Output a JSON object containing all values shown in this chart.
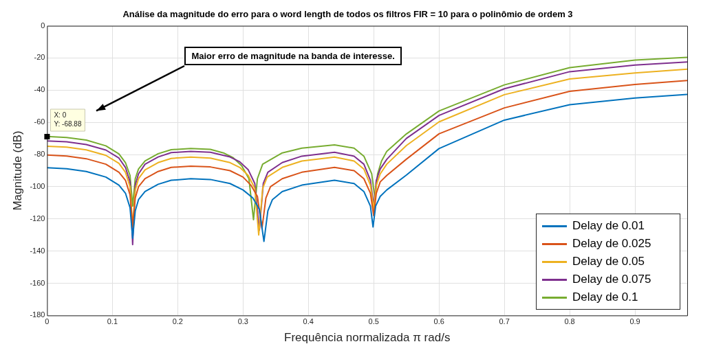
{
  "chart_data": {
    "type": "line",
    "title": "Análise da magnitude do erro para o word length de todos os filtros FIR = 10 para o polinômio de ordem 3",
    "xlabel": "Frequência normalizada π rad/s",
    "ylabel": "Magnitude (dB)",
    "xlim": [
      0,
      0.98
    ],
    "xticks": [
      0,
      0.1,
      0.2,
      0.3,
      0.4,
      0.5,
      0.6,
      0.7,
      0.8,
      0.9
    ],
    "ylim": [
      -180,
      0
    ],
    "yticks": [
      -180,
      -160,
      -140,
      -120,
      -100,
      -80,
      -60,
      -40,
      -20,
      0
    ],
    "grid": true,
    "legend": "bottom right",
    "marker": "none",
    "line_style": "solid",
    "annotations": [
      "Maior erro de magnitude na banda de interesse.",
      {
        "text": "X: 0\nY: -68.88",
        "x": 0,
        "y": -68.88
      }
    ],
    "series": [
      {
        "name": "Delay de 0.01",
        "color": "#0072bd",
        "x": [
          0,
          0.03,
          0.06,
          0.09,
          0.11,
          0.12,
          0.127,
          0.131,
          0.135,
          0.14,
          0.15,
          0.17,
          0.19,
          0.22,
          0.25,
          0.28,
          0.3,
          0.315,
          0.325,
          0.332,
          0.338,
          0.345,
          0.36,
          0.39,
          0.44,
          0.47,
          0.485,
          0.495,
          0.499,
          0.503,
          0.51,
          0.52,
          0.55,
          0.6,
          0.7,
          0.8,
          0.9,
          0.98
        ],
        "values": [
          -88.2,
          -88.8,
          -90.5,
          -94,
          -99,
          -104,
          -113,
          -132,
          -115,
          -108,
          -103,
          -98.5,
          -96,
          -95,
          -95.5,
          -98,
          -102,
          -107,
          -114,
          -134,
          -115,
          -108,
          -103,
          -99,
          -96,
          -98,
          -103,
          -112,
          -125,
          -112,
          -106,
          -102,
          -92.8,
          -76.3,
          -58.6,
          -49,
          -44.9,
          -42.6
        ]
      },
      {
        "name": "Delay de 0.025",
        "color": "#d95319",
        "x": [
          0,
          0.03,
          0.06,
          0.09,
          0.11,
          0.12,
          0.127,
          0.131,
          0.135,
          0.14,
          0.15,
          0.17,
          0.19,
          0.22,
          0.25,
          0.28,
          0.3,
          0.312,
          0.322,
          0.329,
          0.335,
          0.342,
          0.36,
          0.39,
          0.44,
          0.47,
          0.485,
          0.495,
          0.5,
          0.504,
          0.51,
          0.52,
          0.55,
          0.6,
          0.7,
          0.8,
          0.9,
          0.98
        ],
        "values": [
          -80.3,
          -80.9,
          -82.6,
          -86,
          -91,
          -96,
          -105,
          -125,
          -107,
          -100,
          -95,
          -90.5,
          -88,
          -87.2,
          -87.7,
          -90,
          -94,
          -99,
          -106,
          -126,
          -107,
          -100,
          -95,
          -91,
          -88,
          -90,
          -95,
          -104,
          -118,
          -104,
          -97,
          -93,
          -82.9,
          -67.1,
          -51,
          -40.7,
          -36.4,
          -34
        ]
      },
      {
        "name": "Delay de 0.05",
        "color": "#edb120",
        "x": [
          0,
          0.03,
          0.06,
          0.09,
          0.11,
          0.12,
          0.127,
          0.131,
          0.135,
          0.14,
          0.15,
          0.17,
          0.19,
          0.22,
          0.25,
          0.28,
          0.295,
          0.308,
          0.318,
          0.324,
          0.33,
          0.337,
          0.36,
          0.39,
          0.44,
          0.47,
          0.485,
          0.495,
          0.5,
          0.504,
          0.51,
          0.52,
          0.55,
          0.6,
          0.7,
          0.8,
          0.9,
          0.98
        ],
        "values": [
          -74.8,
          -75.4,
          -77.1,
          -80.5,
          -85.5,
          -91,
          -100,
          -125,
          -102,
          -95,
          -89.5,
          -85,
          -82.4,
          -81.6,
          -82.2,
          -85,
          -88,
          -93,
          -101,
          -130,
          -101,
          -94,
          -88,
          -84,
          -81.6,
          -84,
          -89,
          -99,
          -114,
          -99,
          -92,
          -86,
          -74.4,
          -59.7,
          -42.8,
          -33,
          -29.3,
          -27
        ]
      },
      {
        "name": "Delay de 0.075",
        "color": "#7e2f8e",
        "x": [
          0,
          0.03,
          0.06,
          0.09,
          0.11,
          0.12,
          0.127,
          0.131,
          0.135,
          0.14,
          0.15,
          0.17,
          0.19,
          0.22,
          0.25,
          0.28,
          0.295,
          0.308,
          0.318,
          0.325,
          0.331,
          0.338,
          0.36,
          0.39,
          0.44,
          0.47,
          0.485,
          0.495,
          0.5,
          0.504,
          0.51,
          0.52,
          0.55,
          0.6,
          0.7,
          0.8,
          0.9,
          0.98
        ],
        "values": [
          -71.5,
          -72.1,
          -73.8,
          -77.2,
          -82.2,
          -88,
          -97,
          -136,
          -99,
          -92,
          -86,
          -81.5,
          -78.8,
          -78,
          -78.6,
          -81.5,
          -84.5,
          -89.5,
          -98,
          -127,
          -98,
          -91,
          -85,
          -81,
          -78.6,
          -81,
          -86,
          -96,
          -112,
          -96,
          -89,
          -83,
          -70,
          -55.7,
          -39.1,
          -28.5,
          -24.4,
          -22.5
        ]
      },
      {
        "name": "Delay de 0.1",
        "color": "#77ac30",
        "x": [
          0,
          0.03,
          0.06,
          0.09,
          0.11,
          0.12,
          0.127,
          0.131,
          0.135,
          0.14,
          0.15,
          0.17,
          0.19,
          0.22,
          0.25,
          0.27,
          0.285,
          0.298,
          0.309,
          0.316,
          0.322,
          0.33,
          0.36,
          0.39,
          0.44,
          0.47,
          0.485,
          0.497,
          0.502,
          0.506,
          0.512,
          0.52,
          0.55,
          0.6,
          0.7,
          0.8,
          0.9,
          0.98
        ],
        "values": [
          -68.8,
          -69.4,
          -71,
          -74.6,
          -79.6,
          -85,
          -93,
          -112,
          -95,
          -89,
          -84,
          -79.5,
          -77,
          -76.2,
          -76.8,
          -79,
          -82,
          -87,
          -95,
          -120.5,
          -95,
          -86,
          -79,
          -76,
          -74,
          -76,
          -81,
          -92,
          -108,
          -92,
          -84,
          -78,
          -67.2,
          -52.9,
          -36.7,
          -26,
          -21.3,
          -19.6
        ]
      }
    ]
  }
}
